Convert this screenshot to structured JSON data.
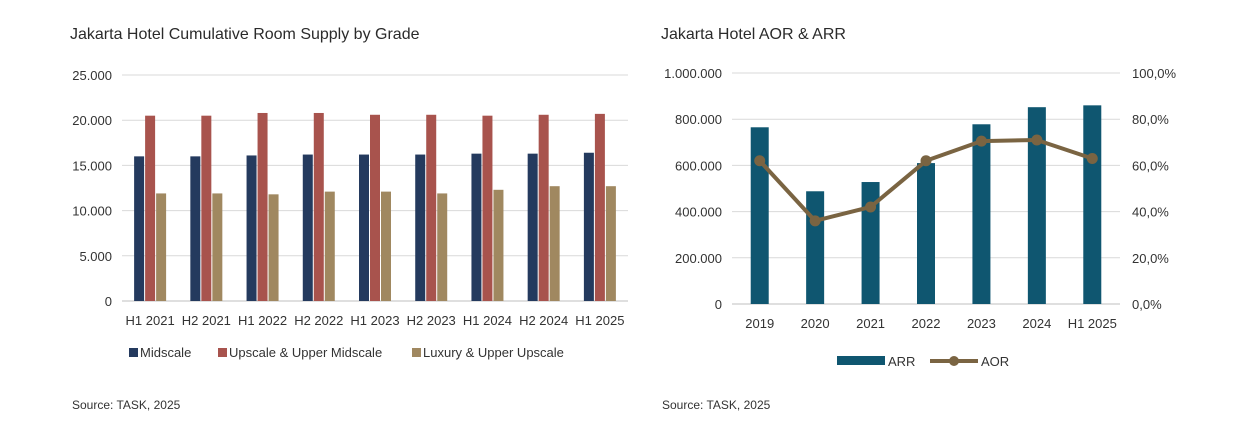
{
  "charts": {
    "left": {
      "title": "Jakarta Hotel Cumulative Room Supply by Grade",
      "source": "Source: TASK, 2025"
    },
    "right": {
      "title": "Jakarta Hotel AOR & ARR",
      "source": "Source: TASK, 2025"
    }
  },
  "chart_data": [
    {
      "type": "bar",
      "title": "Jakarta Hotel Cumulative Room Supply by Grade",
      "categories": [
        "H1 2021",
        "H2 2021",
        "H1 2022",
        "H2 2022",
        "H1 2023",
        "H2 2023",
        "H1 2024",
        "H2 2024",
        "H1 2025"
      ],
      "series": [
        {
          "name": "Midscale",
          "color": "#243a5e",
          "values": [
            16000,
            16000,
            16100,
            16200,
            16200,
            16200,
            16300,
            16300,
            16400
          ]
        },
        {
          "name": "Upscale & Upper Midscale",
          "color": "#a8534d",
          "values": [
            20500,
            20500,
            20800,
            20800,
            20600,
            20600,
            20500,
            20600,
            20700
          ]
        },
        {
          "name": "Luxury & Upper Upscale",
          "color": "#a08860",
          "values": [
            11900,
            11900,
            11800,
            12100,
            12100,
            11900,
            12300,
            12700,
            12700
          ]
        }
      ],
      "ylim": [
        0,
        25000
      ],
      "yticks": [
        0,
        5000,
        10000,
        15000,
        20000,
        25000
      ],
      "ytick_labels": [
        "0",
        "5.000",
        "10.000",
        "15.000",
        "20.000",
        "25.000"
      ],
      "grid": true,
      "legend": "bottom"
    },
    {
      "type": "bar",
      "title": "Jakarta Hotel AOR & ARR",
      "categories": [
        "2019",
        "2020",
        "2021",
        "2022",
        "2023",
        "2024",
        "H1 2025"
      ],
      "series": [
        {
          "name": "ARR",
          "type": "bar",
          "axis": "left",
          "color": "#0f5670",
          "values": [
            765000,
            488000,
            528000,
            610000,
            778000,
            852000,
            860000
          ]
        },
        {
          "name": "AOR",
          "type": "line",
          "axis": "right",
          "color": "#7a6442",
          "values": [
            62.0,
            36.0,
            42.0,
            62.0,
            70.5,
            71.0,
            63.0
          ]
        }
      ],
      "ylim": [
        0,
        1000000
      ],
      "yticks": [
        0,
        200000,
        400000,
        600000,
        800000,
        1000000
      ],
      "ytick_labels": [
        "0",
        "200.000",
        "400.000",
        "600.000",
        "800.000",
        "1.000.000"
      ],
      "y2lim": [
        0,
        100
      ],
      "y2ticks": [
        0,
        20,
        40,
        60,
        80,
        100
      ],
      "y2tick_labels": [
        "0,0%",
        "20,0%",
        "40,0%",
        "60,0%",
        "80,0%",
        "100,0%"
      ],
      "grid": true,
      "legend": "bottom"
    }
  ]
}
